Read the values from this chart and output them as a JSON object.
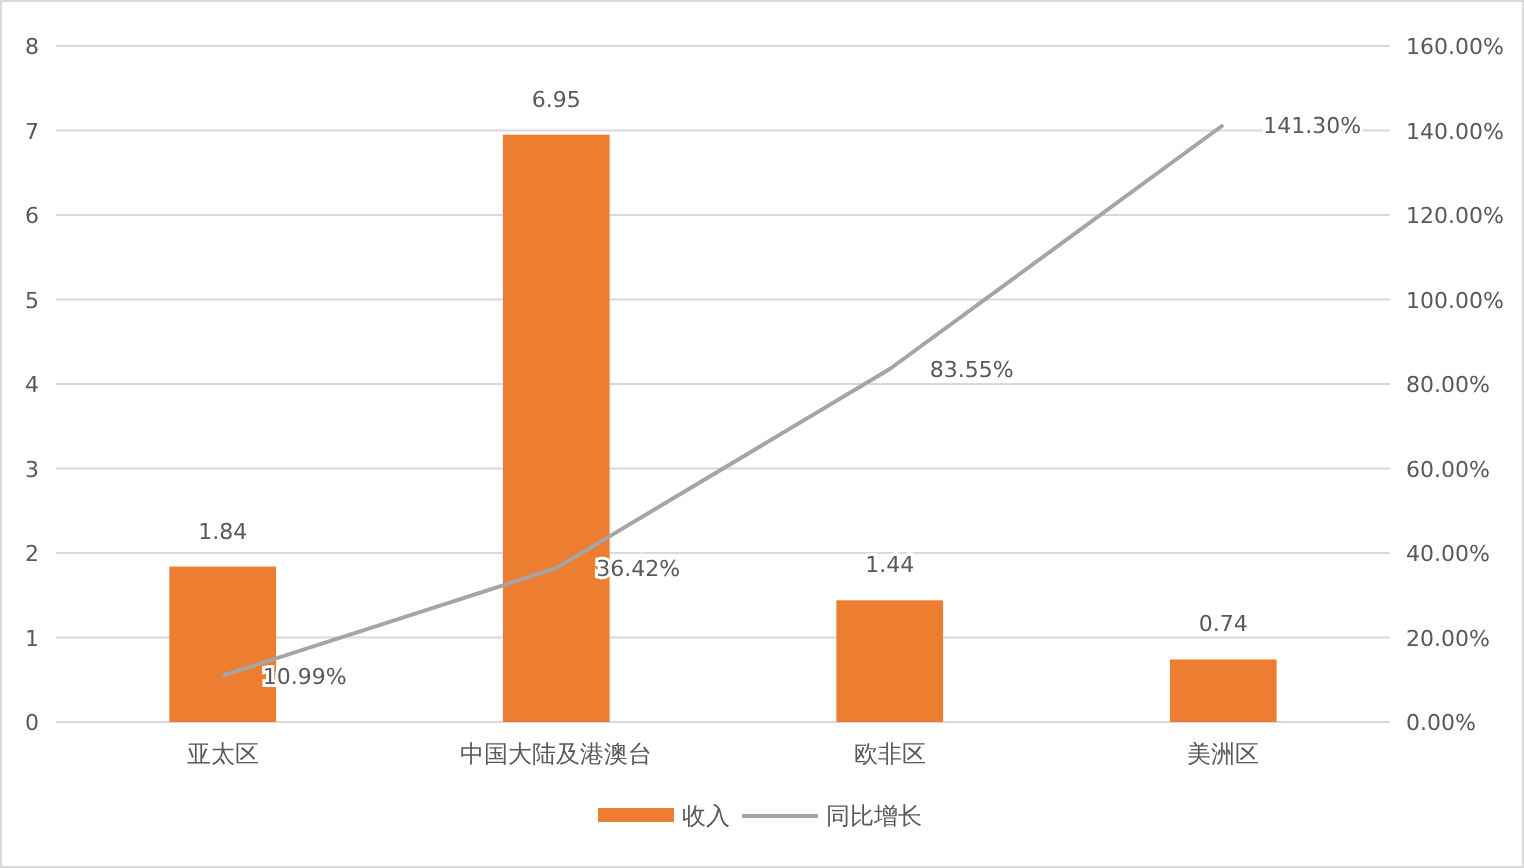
{
  "chart_data": {
    "type": "bar",
    "categories": [
      "亚太区",
      "中国大陆及港澳台",
      "欧非区",
      "美洲区"
    ],
    "series": [
      {
        "name": "收入",
        "color": "#ed7d31",
        "values": [
          1.84,
          6.95,
          1.44,
          0.74
        ],
        "value_labels": [
          "1.84",
          "6.95",
          "1.44",
          "0.74"
        ]
      },
      {
        "name": "同比增长",
        "type": "line",
        "axis": "y2",
        "color": "#a5a5a5",
        "values": [
          10.99,
          36.42,
          83.55,
          141.3
        ],
        "value_labels": [
          "10.99%",
          "36.42%",
          "83.55%",
          "141.30%"
        ]
      }
    ],
    "ylim": [
      0,
      8
    ],
    "yticks": [
      0,
      1,
      2,
      3,
      4,
      5,
      6,
      7,
      8
    ],
    "y2lim": [
      0,
      160
    ],
    "y2ticks": [
      {
        "value": 0,
        "label": "0.00%"
      },
      {
        "value": 20,
        "label": "20.00%"
      },
      {
        "value": 40,
        "label": "40.00%"
      },
      {
        "value": 60,
        "label": "60.00%"
      },
      {
        "value": 80,
        "label": "80.00%"
      },
      {
        "value": 100,
        "label": "100.00%"
      },
      {
        "value": 120,
        "label": "120.00%"
      },
      {
        "value": 140,
        "label": "140.00%"
      },
      {
        "value": 160,
        "label": "160.00%"
      }
    ],
    "grid": "y",
    "legend": "bottom",
    "marker": "none"
  }
}
